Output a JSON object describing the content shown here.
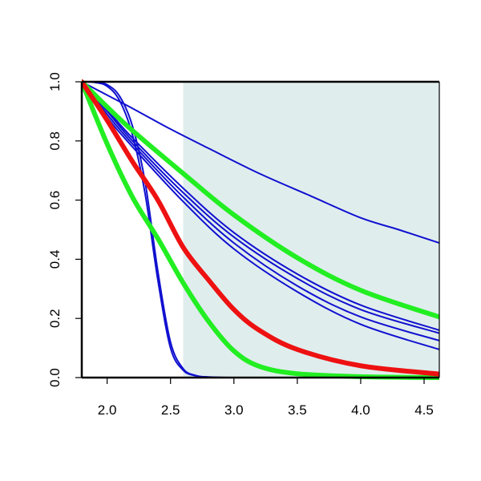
{
  "chart_data": {
    "type": "line",
    "title": "",
    "xlabel": "",
    "ylabel": "",
    "xlim": [
      1.8,
      4.62
    ],
    "ylim": [
      0,
      1
    ],
    "x_ticks": [
      2.0,
      2.5,
      3.0,
      3.5,
      4.0,
      4.5
    ],
    "x_tick_labels": [
      "2.0",
      "2.5",
      "3.0",
      "3.5",
      "4.0",
      "4.5"
    ],
    "y_ticks": [
      0.0,
      0.2,
      0.4,
      0.6,
      0.8,
      1.0
    ],
    "y_tick_labels": [
      "0.0",
      "0.2",
      "0.4",
      "0.6",
      "0.8",
      "1.0"
    ],
    "grid": false,
    "shaded_region": {
      "x_start": 2.6,
      "x_end": 4.62,
      "color": "#e0eded"
    },
    "colors": {
      "blue": "#1010d0",
      "green": "#22ee22",
      "red": "#ee1111",
      "axis": "#000000"
    },
    "series": [
      {
        "color": "blue",
        "weight": "thin",
        "x": [
          1.8,
          2.0,
          2.2,
          2.5,
          2.8,
          3.2,
          3.6,
          4.0,
          4.3,
          4.62
        ],
        "y": [
          1.0,
          0.955,
          0.91,
          0.84,
          0.775,
          0.69,
          0.615,
          0.54,
          0.5,
          0.455
        ]
      },
      {
        "color": "blue",
        "weight": "thin",
        "x": [
          1.8,
          1.9,
          2.0,
          2.1,
          2.2,
          2.3,
          2.4,
          2.5,
          2.6,
          2.7,
          2.8,
          3.0,
          3.5,
          4.62
        ],
        "y": [
          1.0,
          0.999,
          0.99,
          0.95,
          0.85,
          0.66,
          0.36,
          0.12,
          0.03,
          0.007,
          0.002,
          0.0,
          0.0,
          0.0
        ]
      },
      {
        "color": "blue",
        "weight": "thin",
        "x": [
          1.8,
          1.9,
          2.0,
          2.1,
          2.2,
          2.3,
          2.4,
          2.5,
          2.6,
          2.7,
          2.8,
          3.0,
          3.5,
          4.62
        ],
        "y": [
          1.0,
          0.998,
          0.985,
          0.935,
          0.82,
          0.62,
          0.33,
          0.1,
          0.025,
          0.006,
          0.001,
          0.0,
          0.0,
          0.0
        ]
      },
      {
        "color": "blue",
        "weight": "thin",
        "x": [
          1.8,
          2.0,
          2.2,
          2.6,
          3.0,
          3.5,
          4.0,
          4.62
        ],
        "y": [
          1.0,
          0.905,
          0.81,
          0.64,
          0.49,
          0.35,
          0.245,
          0.16
        ]
      },
      {
        "color": "blue",
        "weight": "thin",
        "x": [
          1.8,
          2.0,
          2.2,
          2.6,
          3.0,
          3.5,
          4.0,
          4.62
        ],
        "y": [
          1.0,
          0.9,
          0.8,
          0.625,
          0.475,
          0.335,
          0.23,
          0.15
        ]
      },
      {
        "color": "blue",
        "weight": "thin",
        "x": [
          1.8,
          2.0,
          2.2,
          2.6,
          3.0,
          3.5,
          4.0,
          4.62
        ],
        "y": [
          1.0,
          0.89,
          0.79,
          0.61,
          0.455,
          0.31,
          0.205,
          0.125
        ]
      },
      {
        "color": "blue",
        "weight": "thin",
        "x": [
          1.8,
          2.0,
          2.2,
          2.6,
          3.0,
          3.5,
          4.0,
          4.62
        ],
        "y": [
          1.0,
          0.88,
          0.78,
          0.595,
          0.435,
          0.29,
          0.18,
          0.095
        ]
      },
      {
        "color": "green",
        "weight": "thick",
        "x": [
          1.8,
          2.0,
          2.2,
          2.6,
          3.0,
          3.5,
          4.0,
          4.62
        ],
        "y": [
          1.0,
          0.915,
          0.835,
          0.69,
          0.55,
          0.405,
          0.295,
          0.205
        ]
      },
      {
        "color": "green",
        "weight": "thick",
        "x": [
          1.8,
          2.0,
          2.2,
          2.4,
          2.6,
          2.8,
          3.0,
          3.2,
          3.5,
          4.0,
          4.62
        ],
        "y": [
          1.0,
          0.79,
          0.61,
          0.47,
          0.32,
          0.19,
          0.09,
          0.038,
          0.013,
          0.003,
          0.0
        ]
      },
      {
        "color": "red",
        "weight": "thick",
        "x": [
          1.8,
          2.0,
          2.2,
          2.4,
          2.6,
          2.8,
          3.0,
          3.2,
          3.5,
          4.0,
          4.62
        ],
        "y": [
          1.0,
          0.87,
          0.73,
          0.6,
          0.44,
          0.33,
          0.23,
          0.16,
          0.095,
          0.04,
          0.012
        ]
      }
    ]
  }
}
